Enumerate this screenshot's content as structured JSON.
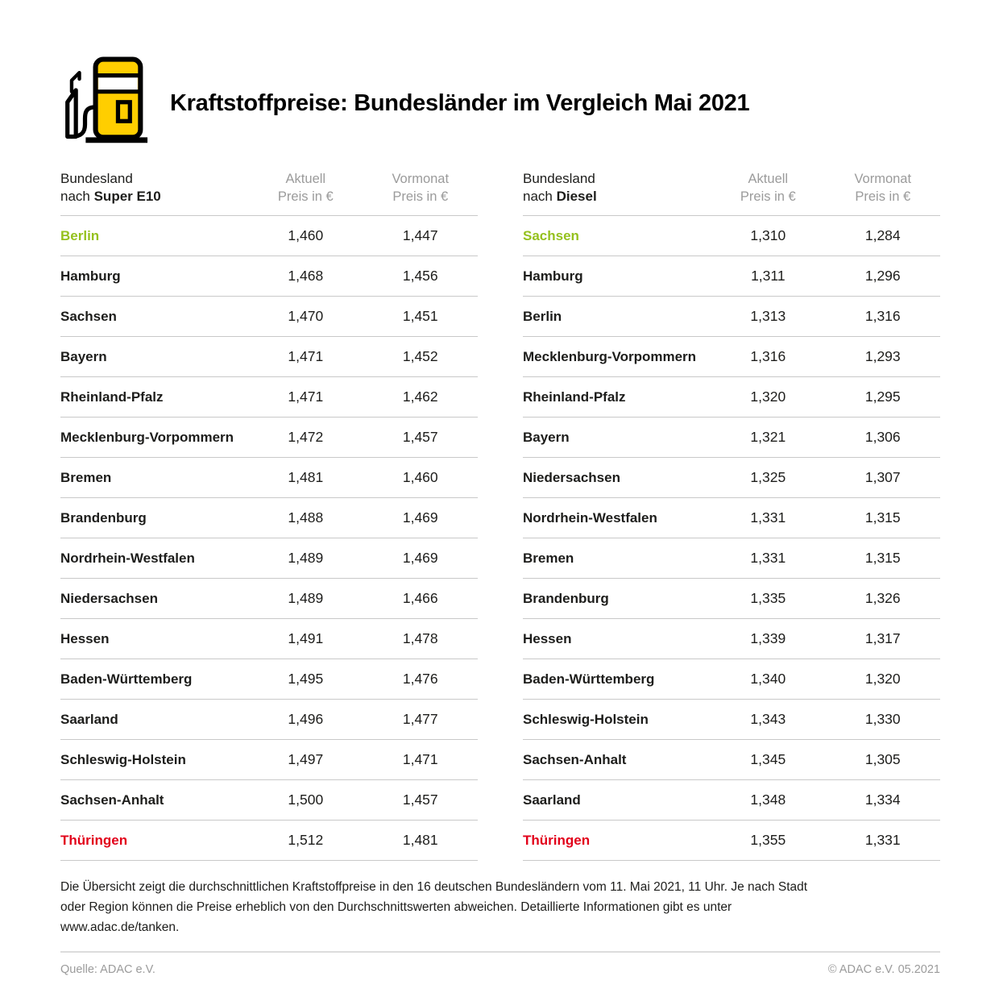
{
  "header": {
    "title": "Kraftstoffpreise: Bundesländer im Vergleich Mai 2021",
    "icon": "fuel-pump-icon"
  },
  "colors": {
    "brand_yellow": "#FFCE00",
    "highlight_green": "#95C11E",
    "highlight_red": "#E2001A",
    "header_gray": "#9B9B9B",
    "divider_gray": "#C9C9C9"
  },
  "tables": [
    {
      "header": {
        "title_line1": "Bundesland",
        "title_line2_prefix": "nach ",
        "fuel": "Super E10",
        "col_aktuell": "Aktuell",
        "col_vormonat": "Vormonat",
        "unit": "Preis in €"
      },
      "rows": [
        {
          "name": "Berlin",
          "aktuell": "1,460",
          "vormonat": "1,447",
          "color": "green"
        },
        {
          "name": "Hamburg",
          "aktuell": "1,468",
          "vormonat": "1,456",
          "color": ""
        },
        {
          "name": "Sachsen",
          "aktuell": "1,470",
          "vormonat": "1,451",
          "color": ""
        },
        {
          "name": "Bayern",
          "aktuell": "1,471",
          "vormonat": "1,452",
          "color": ""
        },
        {
          "name": "Rheinland-Pfalz",
          "aktuell": "1,471",
          "vormonat": "1,462",
          "color": ""
        },
        {
          "name": "Mecklenburg-Vorpommern",
          "aktuell": "1,472",
          "vormonat": "1,457",
          "color": ""
        },
        {
          "name": "Bremen",
          "aktuell": "1,481",
          "vormonat": "1,460",
          "color": ""
        },
        {
          "name": "Brandenburg",
          "aktuell": "1,488",
          "vormonat": "1,469",
          "color": ""
        },
        {
          "name": "Nordrhein-Westfalen",
          "aktuell": "1,489",
          "vormonat": "1,469",
          "color": ""
        },
        {
          "name": "Niedersachsen",
          "aktuell": "1,489",
          "vormonat": "1,466",
          "color": ""
        },
        {
          "name": "Hessen",
          "aktuell": "1,491",
          "vormonat": "1,478",
          "color": ""
        },
        {
          "name": "Baden-Württemberg",
          "aktuell": "1,495",
          "vormonat": "1,476",
          "color": ""
        },
        {
          "name": "Saarland",
          "aktuell": "1,496",
          "vormonat": "1,477",
          "color": ""
        },
        {
          "name": "Schleswig-Holstein",
          "aktuell": "1,497",
          "vormonat": "1,471",
          "color": ""
        },
        {
          "name": "Sachsen-Anhalt",
          "aktuell": "1,500",
          "vormonat": "1,457",
          "color": ""
        },
        {
          "name": "Thüringen",
          "aktuell": "1,512",
          "vormonat": "1,481",
          "color": "red"
        }
      ]
    },
    {
      "header": {
        "title_line1": "Bundesland",
        "title_line2_prefix": "nach ",
        "fuel": "Diesel",
        "col_aktuell": "Aktuell",
        "col_vormonat": "Vormonat",
        "unit": "Preis in €"
      },
      "rows": [
        {
          "name": "Sachsen",
          "aktuell": "1,310",
          "vormonat": "1,284",
          "color": "green"
        },
        {
          "name": "Hamburg",
          "aktuell": "1,311",
          "vormonat": "1,296",
          "color": ""
        },
        {
          "name": "Berlin",
          "aktuell": "1,313",
          "vormonat": "1,316",
          "color": ""
        },
        {
          "name": "Mecklenburg-Vorpommern",
          "aktuell": "1,316",
          "vormonat": "1,293",
          "color": ""
        },
        {
          "name": "Rheinland-Pfalz",
          "aktuell": "1,320",
          "vormonat": "1,295",
          "color": ""
        },
        {
          "name": "Bayern",
          "aktuell": "1,321",
          "vormonat": "1,306",
          "color": ""
        },
        {
          "name": "Niedersachsen",
          "aktuell": "1,325",
          "vormonat": "1,307",
          "color": ""
        },
        {
          "name": "Nordrhein-Westfalen",
          "aktuell": "1,331",
          "vormonat": "1,315",
          "color": ""
        },
        {
          "name": "Bremen",
          "aktuell": "1,331",
          "vormonat": "1,315",
          "color": ""
        },
        {
          "name": "Brandenburg",
          "aktuell": "1,335",
          "vormonat": "1,326",
          "color": ""
        },
        {
          "name": "Hessen",
          "aktuell": "1,339",
          "vormonat": "1,317",
          "color": ""
        },
        {
          "name": "Baden-Württemberg",
          "aktuell": "1,340",
          "vormonat": "1,320",
          "color": ""
        },
        {
          "name": "Schleswig-Holstein",
          "aktuell": "1,343",
          "vormonat": "1,330",
          "color": ""
        },
        {
          "name": "Sachsen-Anhalt",
          "aktuell": "1,345",
          "vormonat": "1,305",
          "color": ""
        },
        {
          "name": "Saarland",
          "aktuell": "1,348",
          "vormonat": "1,334",
          "color": ""
        },
        {
          "name": "Thüringen",
          "aktuell": "1,355",
          "vormonat": "1,331",
          "color": "red"
        }
      ]
    }
  ],
  "footnote": "Die Übersicht zeigt die durchschnittlichen Kraftstoffpreise in den 16 deutschen Bundesländern vom 11. Mai 2021, 11 Uhr. Je nach Stadt oder Region können die Preise erheblich von den Durchschnittswerten abweichen. Detaillierte Informationen gibt es unter www.adac.de/tanken.",
  "credits": {
    "source": "Quelle: ADAC e.V.",
    "copyright": "© ADAC e.V. 05.2021"
  },
  "chart_data": [
    {
      "type": "table",
      "title": "Bundesland nach Super E10",
      "columns": [
        "Bundesland",
        "Aktuell Preis in €",
        "Vormonat Preis in €"
      ],
      "rows": [
        [
          "Berlin",
          1.46,
          1.447
        ],
        [
          "Hamburg",
          1.468,
          1.456
        ],
        [
          "Sachsen",
          1.47,
          1.451
        ],
        [
          "Bayern",
          1.471,
          1.452
        ],
        [
          "Rheinland-Pfalz",
          1.471,
          1.462
        ],
        [
          "Mecklenburg-Vorpommern",
          1.472,
          1.457
        ],
        [
          "Bremen",
          1.481,
          1.46
        ],
        [
          "Brandenburg",
          1.488,
          1.469
        ],
        [
          "Nordrhein-Westfalen",
          1.489,
          1.469
        ],
        [
          "Niedersachsen",
          1.489,
          1.466
        ],
        [
          "Hessen",
          1.491,
          1.478
        ],
        [
          "Baden-Württemberg",
          1.495,
          1.476
        ],
        [
          "Saarland",
          1.496,
          1.477
        ],
        [
          "Schleswig-Holstein",
          1.497,
          1.471
        ],
        [
          "Sachsen-Anhalt",
          1.5,
          1.457
        ],
        [
          "Thüringen",
          1.512,
          1.481
        ]
      ],
      "notes": "cheapest row (Berlin) highlighted green, most expensive row (Thüringen) highlighted red"
    },
    {
      "type": "table",
      "title": "Bundesland nach Diesel",
      "columns": [
        "Bundesland",
        "Aktuell Preis in €",
        "Vormonat Preis in €"
      ],
      "rows": [
        [
          "Sachsen",
          1.31,
          1.284
        ],
        [
          "Hamburg",
          1.311,
          1.296
        ],
        [
          "Berlin",
          1.313,
          1.316
        ],
        [
          "Mecklenburg-Vorpommern",
          1.316,
          1.293
        ],
        [
          "Rheinland-Pfalz",
          1.32,
          1.295
        ],
        [
          "Bayern",
          1.321,
          1.306
        ],
        [
          "Niedersachsen",
          1.325,
          1.307
        ],
        [
          "Nordrhein-Westfalen",
          1.331,
          1.315
        ],
        [
          "Bremen",
          1.331,
          1.315
        ],
        [
          "Brandenburg",
          1.335,
          1.326
        ],
        [
          "Hessen",
          1.339,
          1.317
        ],
        [
          "Baden-Württemberg",
          1.34,
          1.32
        ],
        [
          "Schleswig-Holstein",
          1.343,
          1.33
        ],
        [
          "Sachsen-Anhalt",
          1.345,
          1.305
        ],
        [
          "Saarland",
          1.348,
          1.334
        ],
        [
          "Thüringen",
          1.355,
          1.331
        ]
      ],
      "notes": "cheapest row (Sachsen) highlighted green, most expensive row (Thüringen) highlighted red"
    }
  ]
}
